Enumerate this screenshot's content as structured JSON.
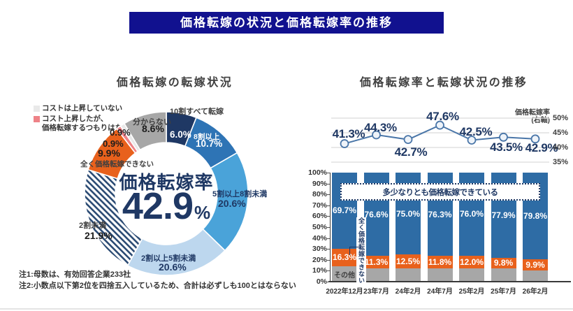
{
  "banner": {
    "title": "価格転嫁の状況と価格転嫁率の推移"
  },
  "chart_data": [
    {
      "type": "pie",
      "title": "価格転嫁の転嫁状況",
      "center_label": "価格転嫁率",
      "center_value": "42.9",
      "center_unit": "%",
      "segments": [
        {
          "label": "10割すべて転嫁",
          "value": 6.0,
          "pct": "6.0%",
          "color": "#1f3864"
        },
        {
          "label": "8割以上",
          "value": 10.7,
          "pct": "10.7%",
          "color": "#2e74b5"
        },
        {
          "label": "5割以上8割未満",
          "value": 20.6,
          "pct": "20.6%",
          "color": "#4aa3d9"
        },
        {
          "label": "2割以上5割未満",
          "value": 20.6,
          "pct": "20.6%",
          "color": "#bdd7ee"
        },
        {
          "label": "2割未満",
          "value": 21.9,
          "pct": "21.9%",
          "color": "hatch"
        },
        {
          "label": "全く価格転嫁できない",
          "value": 9.9,
          "pct": "9.9%",
          "color": "#e8611c"
        },
        {
          "label": "コスト上昇したが、価格転嫁するつもりはない",
          "value": 0.9,
          "pct": "0.9%",
          "color": "#ee8287"
        },
        {
          "label": "コストは上昇していない",
          "value": 0.9,
          "pct": "0.9%",
          "color": "#e9e9e9"
        },
        {
          "label": "分からない",
          "value": 8.6,
          "pct": "8.6%",
          "color": "#a7a7a7"
        }
      ],
      "legend": [
        {
          "label": "コストは上昇していない",
          "color": "#e9e9e9"
        },
        {
          "label": "コスト上昇したが、\n価格転嫁するつもりはない",
          "color": "#ee8287"
        }
      ],
      "notes": [
        "注1:母数は、有効回答企業233社",
        "注2:小数点以下第2位を四捨五入しているため、合計は必ずしも100とはならない"
      ]
    },
    {
      "type": "line",
      "title": "価格転嫁率と転嫁状況の推移",
      "x": [
        "2022年12月",
        "23年7月",
        "24年2月",
        "24年7月",
        "25年2月",
        "25年7月",
        "26年2月"
      ],
      "values": [
        41.3,
        44.3,
        42.7,
        47.6,
        42.5,
        43.5,
        42.9
      ],
      "labels": [
        "41.3%",
        "44.3%",
        "42.7%",
        "47.6%",
        "42.5%",
        "43.5%",
        "42.9%"
      ],
      "right_axis": {
        "label": "価格転嫁率\n(右軸)",
        "ticks": [
          50,
          45,
          40,
          35
        ],
        "range": [
          35,
          50
        ]
      },
      "line_color": "#4a76a8",
      "grid": true,
      "legend_position": "none"
    },
    {
      "type": "bar",
      "stacked": true,
      "categories": [
        "2022年12月",
        "23年7月",
        "24年2月",
        "24年7月",
        "25年2月",
        "25年7月",
        "26年2月"
      ],
      "series": [
        {
          "name": "多少なりとも価格転嫁できている",
          "color": "#2e6ca5",
          "values": [
            69.7,
            76.6,
            75.0,
            76.3,
            76.0,
            77.9,
            79.8
          ],
          "labeled": true
        },
        {
          "name": "全く価格転嫁できない",
          "color": "#e8611c",
          "values": [
            16.3,
            11.3,
            12.5,
            11.8,
            12.0,
            9.8,
            9.9
          ],
          "labeled": true
        },
        {
          "name": "その他",
          "color": "#a7a7a7",
          "values": [
            14.0,
            12.1,
            12.5,
            11.9,
            12.0,
            12.3,
            10.3
          ],
          "labeled": false
        }
      ],
      "overlay_label": "多少なりとも価格転嫁できている",
      "side_label": "全く価格転嫁できない",
      "other_label": "その他",
      "yticks": [
        "100%",
        "90%",
        "80%",
        "70%",
        "60%",
        "50%",
        "40%",
        "30%",
        "20%",
        "10%",
        "0%"
      ],
      "ylim": [
        0,
        100
      ]
    }
  ]
}
